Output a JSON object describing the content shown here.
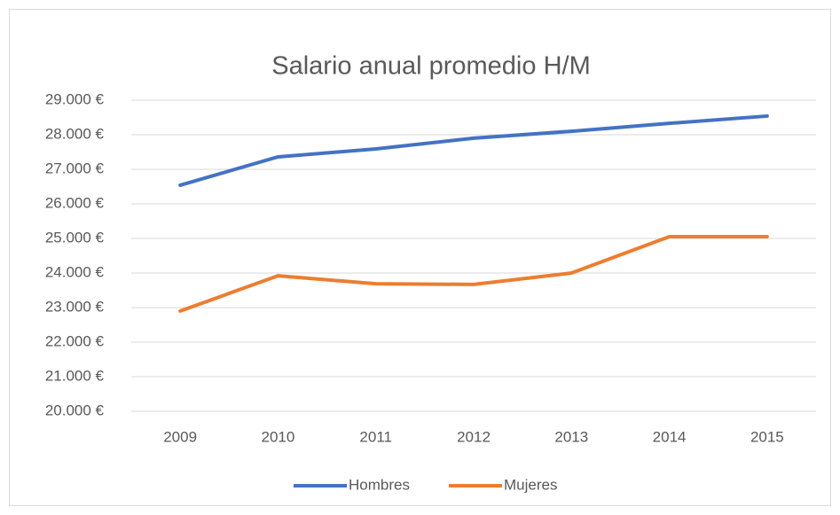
{
  "chart_data": {
    "type": "line",
    "title": "Salario anual promedio H/M",
    "categories": [
      "2009",
      "2010",
      "2011",
      "2012",
      "2013",
      "2014",
      "2015"
    ],
    "series": [
      {
        "name": "Hombres",
        "color": "#4472c4",
        "values": [
          26540,
          27360,
          27590,
          27900,
          28100,
          28330,
          28540
        ]
      },
      {
        "name": "Mujeres",
        "color": "#ed7d31",
        "values": [
          22900,
          23920,
          23690,
          23670,
          24000,
          25050,
          25050
        ]
      }
    ],
    "ylim": [
      20000,
      29000
    ],
    "yticks": [
      {
        "value": 20000,
        "label": "20.000 €"
      },
      {
        "value": 21000,
        "label": "21.000 €"
      },
      {
        "value": 22000,
        "label": "22.000 €"
      },
      {
        "value": 23000,
        "label": "23.000 €"
      },
      {
        "value": 24000,
        "label": "24.000 €"
      },
      {
        "value": 25000,
        "label": "25.000 €"
      },
      {
        "value": 26000,
        "label": "26.000 €"
      },
      {
        "value": 27000,
        "label": "27.000 €"
      },
      {
        "value": 28000,
        "label": "28.000 €"
      },
      {
        "value": 29000,
        "label": "29.000 €"
      }
    ],
    "grid": true,
    "legend": "bottom"
  }
}
